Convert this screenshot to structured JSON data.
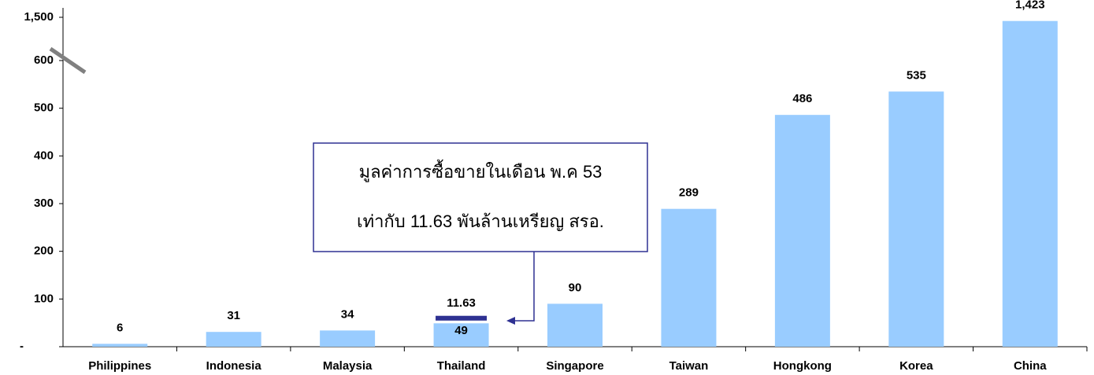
{
  "chart_data": {
    "type": "bar",
    "categories": [
      "Philippines",
      "Indonesia",
      "Malaysia",
      "Thailand",
      "Singapore",
      "Taiwan",
      "Hongkong",
      "Korea",
      "China"
    ],
    "series": [
      {
        "color": "#99ccff",
        "values": [
          6,
          31,
          34,
          49,
          90,
          289,
          486,
          535,
          1423
        ],
        "value_labels": [
          "6",
          "31",
          "34",
          "49",
          "90",
          "289",
          "486",
          "535",
          "1,423"
        ]
      },
      {
        "color": "#2e3192",
        "values": [
          null,
          null,
          null,
          11.63,
          null,
          null,
          null,
          null,
          null
        ]
      }
    ],
    "ylim": [
      0,
      1500
    ],
    "yticks": [
      {
        "value": 0,
        "label": "-"
      },
      100,
      200,
      300,
      400,
      500,
      600,
      {
        "value": 1500,
        "label": "1,500"
      }
    ],
    "axis_break": true,
    "annotation": {
      "lines": [
        "มูลค่าการซื้อขายในเดือน พ.ค 53",
        "เท่ากับ 11.63 พันล้านเหรียญ สรอ."
      ]
    }
  }
}
